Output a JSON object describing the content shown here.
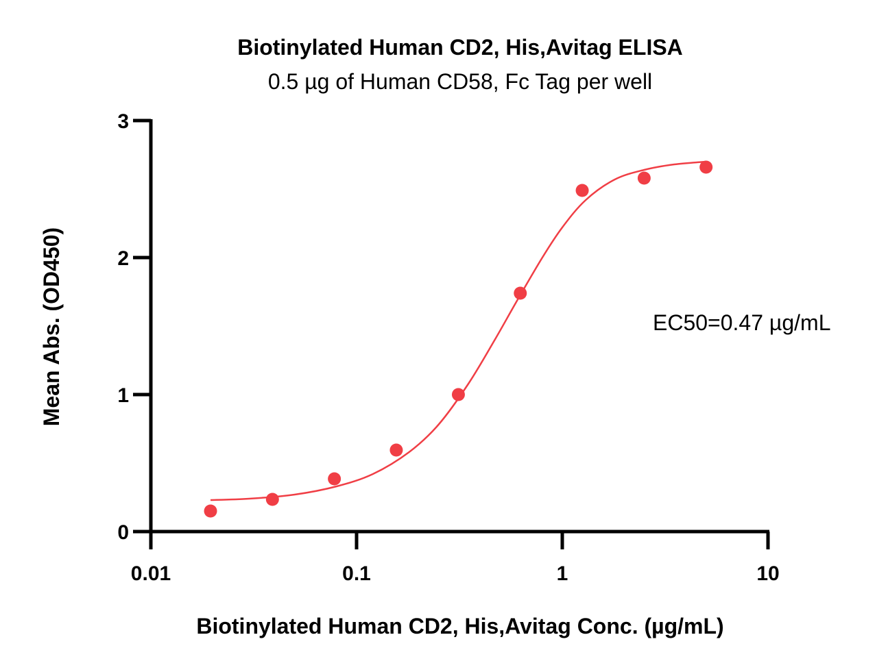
{
  "chart_data": {
    "type": "scatter",
    "title": "Biotinylated Human CD2, His,Avitag ELISA",
    "subtitle": "0.5 µg of Human CD58, Fc Tag per well",
    "xlabel": "Biotinylated Human CD2, His,Avitag Conc. (µg/mL)",
    "ylabel": "Mean Abs. (OD450)",
    "xscale": "log",
    "xlim": [
      0.01,
      10
    ],
    "ylim": [
      0,
      3
    ],
    "x_ticks": [
      0.01,
      0.1,
      1,
      10
    ],
    "x_tick_labels": [
      "0.01",
      "0.1",
      "1",
      "10"
    ],
    "y_ticks": [
      0,
      1,
      2,
      3
    ],
    "y_tick_labels": [
      "0",
      "1",
      "2",
      "3"
    ],
    "grid": false,
    "colors": {
      "series": "#f03e45",
      "axis": "#000000"
    },
    "points": {
      "x": [
        0.0195,
        0.039,
        0.078,
        0.156,
        0.3125,
        0.625,
        1.25,
        2.5,
        5.0
      ],
      "y": [
        0.15,
        0.235,
        0.385,
        0.595,
        1.0,
        1.74,
        2.49,
        2.58,
        2.66
      ]
    },
    "fit_curve": {
      "x": [
        0.0195,
        0.03,
        0.05,
        0.08,
        0.12,
        0.18,
        0.25,
        0.35,
        0.47,
        0.6,
        0.8,
        1.0,
        1.3,
        1.8,
        2.5,
        3.5,
        5.0
      ],
      "y": [
        0.23,
        0.24,
        0.27,
        0.33,
        0.42,
        0.58,
        0.78,
        1.08,
        1.4,
        1.68,
        2.0,
        2.22,
        2.42,
        2.57,
        2.64,
        2.68,
        2.7
      ]
    },
    "annotations": [
      {
        "text": "EC50=0.47 µg/mL"
      }
    ]
  }
}
